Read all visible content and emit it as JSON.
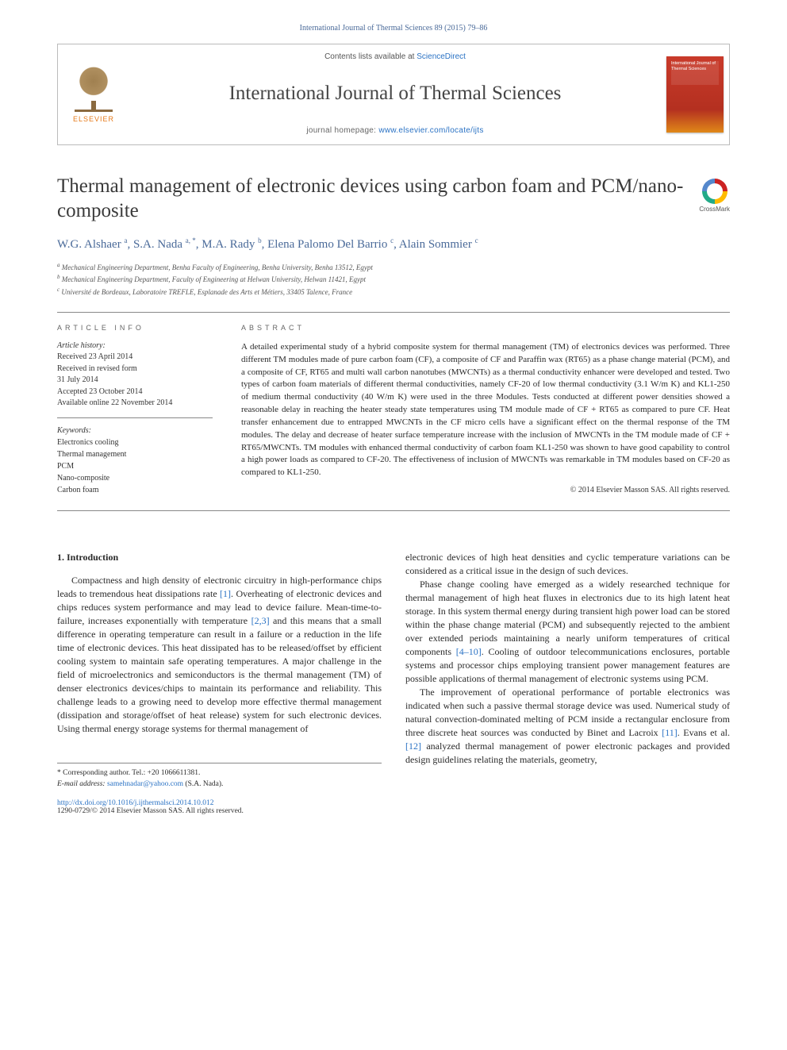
{
  "journal_ref": "International Journal of Thermal Sciences 89 (2015) 79–86",
  "masthead": {
    "publisher_label": "ELSEVIER",
    "contents_prefix": "Contents lists available at ",
    "contents_link": "ScienceDirect",
    "journal_name": "International Journal of Thermal Sciences",
    "homepage_prefix": "journal homepage: ",
    "homepage_url": "www.elsevier.com/locate/ijts",
    "cover_text": "International Journal of Thermal Sciences"
  },
  "crossmark_label": "CrossMark",
  "title": "Thermal management of electronic devices using carbon foam and PCM/nano-composite",
  "authors_html": "W.G. Alshaer <sup>a</sup>, S.A. Nada <sup>a, *</sup>, M.A. Rady <sup>b</sup>, Elena Palomo Del Barrio <sup>c</sup>, Alain Sommier <sup>c</sup>",
  "affiliations": [
    {
      "sup": "a",
      "text": "Mechanical Engineering Department, Benha Faculty of Engineering, Benha University, Benha 13512, Egypt"
    },
    {
      "sup": "b",
      "text": "Mechanical Engineering Department, Faculty of Engineering at Helwan University, Helwan 11421, Egypt"
    },
    {
      "sup": "c",
      "text": "Université de Bordeaux, Laboratoire TREFLE, Esplanade des Arts et Métiers, 33405 Talence, France"
    }
  ],
  "info": {
    "label": "ARTICLE INFO",
    "history_label": "Article history:",
    "history": [
      "Received 23 April 2014",
      "Received in revised form",
      "31 July 2014",
      "Accepted 23 October 2014",
      "Available online 22 November 2014"
    ],
    "keywords_label": "Keywords:",
    "keywords": [
      "Electronics cooling",
      "Thermal management",
      "PCM",
      "Nano-composite",
      "Carbon foam"
    ]
  },
  "abstract": {
    "label": "ABSTRACT",
    "text": "A detailed experimental study of a hybrid composite system for thermal management (TM) of electronics devices was performed. Three different TM modules made of pure carbon foam (CF), a composite of CF and Paraffin wax (RT65) as a phase change material (PCM), and a composite of CF, RT65 and multi wall carbon nanotubes (MWCNTs) as a thermal conductivity enhancer were developed and tested. Two types of carbon foam materials of different thermal conductivities, namely CF-20 of low thermal conductivity (3.1 W/m K) and KL1-250 of medium thermal conductivity (40 W/m K) were used in the three Modules. Tests conducted at different power densities showed a reasonable delay in reaching the heater steady state temperatures using TM module made of CF + RT65 as compared to pure CF. Heat transfer enhancement due to entrapped MWCNTs in the CF micro cells have a significant effect on the thermal response of the TM modules. The delay and decrease of heater surface temperature increase with the inclusion of MWCNTs in the TM module made of CF + RT65/MWCNTs. TM modules with enhanced thermal conductivity of carbon foam KL1-250 was shown to have good capability to control a high power loads as compared to CF-20. The effectiveness of inclusion of MWCNTs was remarkable in TM modules based on CF-20 as compared to KL1-250.",
    "copyright": "© 2014 Elsevier Masson SAS. All rights reserved."
  },
  "section_heading": "1. Introduction",
  "col1": {
    "p1_pre": "Compactness and high density of electronic circuitry in high-performance chips leads to tremendous heat dissipations rate ",
    "p1_cite1": "[1]",
    "p1_mid": ". Overheating of electronic devices and chips reduces system performance and may lead to device failure. Mean-time-to-failure, increases exponentially with temperature ",
    "p1_cite2": "[2,3]",
    "p1_post": " and this means that a small difference in operating temperature can result in a failure or a reduction in the life time of electronic devices. This heat dissipated has to be released/offset by efficient cooling system to maintain safe operating temperatures. A major challenge in the field of microelectronics and semiconductors is the thermal management (TM) of denser electronics devices/chips to maintain its performance and reliability. This challenge leads to a growing need to develop more effective thermal management (dissipation and storage/offset of heat release) system for such electronic devices. Using thermal energy storage systems for thermal management of"
  },
  "col2": {
    "p1": "electronic devices of high heat densities and cyclic temperature variations can be considered as a critical issue in the design of such devices.",
    "p2_pre": "Phase change cooling have emerged as a widely researched technique for thermal management of high heat fluxes in electronics due to its high latent heat storage. In this system thermal energy during transient high power load can be stored within the phase change material (PCM) and subsequently rejected to the ambient over extended periods maintaining a nearly uniform temperatures of critical components ",
    "p2_cite": "[4–10]",
    "p2_post": ". Cooling of outdoor telecommunications enclosures, portable systems and processor chips employing transient power management features are possible applications of thermal management of electronic systems using PCM.",
    "p3_pre": "The improvement of operational performance of portable electronics was indicated when such a passive thermal storage device was used. Numerical study of natural convection-dominated melting of PCM inside a rectangular enclosure from three discrete heat sources was conducted by Binet and Lacroix ",
    "p3_cite1": "[11]",
    "p3_mid": ". Evans et al. ",
    "p3_cite2": "[12]",
    "p3_post": " analyzed thermal management of power electronic packages and provided design guidelines relating the materials, geometry,"
  },
  "footer": {
    "corr_label": "* Corresponding author. Tel.: +20 1066611381.",
    "email_label": "E-mail address: ",
    "email": "samehnadar@yahoo.com",
    "email_post": " (S.A. Nada).",
    "doi": "http://dx.doi.org/10.1016/j.ijthermalsci.2014.10.012",
    "issn": "1290-0729/© 2014 Elsevier Masson SAS. All rights reserved."
  }
}
